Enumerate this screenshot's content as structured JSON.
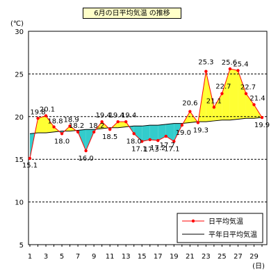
{
  "chart_data": {
    "type": "line",
    "title": "6月の日平均気温 の推移",
    "y_unit_label": "(℃)",
    "x_unit_label": "(日)",
    "ylim": [
      5,
      30
    ],
    "y_ticks": [
      5,
      10,
      15,
      20,
      25,
      30
    ],
    "x_ticks": [
      1,
      3,
      5,
      7,
      9,
      11,
      13,
      15,
      17,
      19,
      21,
      23,
      25,
      27,
      29
    ],
    "grid": true,
    "legend_position": "bottom-right",
    "x": [
      1,
      2,
      3,
      4,
      5,
      6,
      7,
      8,
      9,
      10,
      11,
      12,
      13,
      14,
      15,
      16,
      17,
      18,
      19,
      20,
      21,
      22,
      23,
      24,
      25,
      26,
      27,
      28,
      29,
      30
    ],
    "series": [
      {
        "name": "日平均気温",
        "color": "#ff0000",
        "values": [
          15.1,
          19.8,
          20.1,
          18.8,
          18.0,
          18.9,
          18.2,
          16.0,
          18.2,
          19.4,
          18.5,
          19.4,
          19.4,
          18.0,
          17.1,
          17.3,
          17.2,
          17.7,
          17.1,
          19.0,
          20.6,
          19.3,
          25.3,
          21.1,
          22.7,
          25.6,
          25.4,
          22.7,
          21.4,
          19.9
        ],
        "labels": [
          "15.1",
          "19.8",
          "20.1",
          "18.8",
          "18.0",
          "18.9",
          "18.2",
          "16.0",
          "18.2",
          "19.4",
          "18.5",
          "19.4",
          "19.4",
          "18.0",
          "17.1",
          "17.3",
          "17.2",
          "17.7",
          "17.1",
          "19.0",
          "20.6",
          "19.3",
          "25.3",
          "21.1",
          "22.7",
          "25.6",
          "25.4",
          "22.7",
          "21.4",
          "19.9"
        ]
      },
      {
        "name": "平年日平均気温",
        "color": "#000000",
        "values": [
          18.0,
          18.1,
          18.1,
          18.2,
          18.3,
          18.3,
          18.4,
          18.5,
          18.5,
          18.6,
          18.7,
          18.7,
          18.8,
          18.9,
          18.9,
          19.0,
          19.0,
          19.1,
          19.2,
          19.2,
          19.3,
          19.4,
          19.4,
          19.5,
          19.6,
          19.6,
          19.7,
          19.8,
          19.8,
          19.9
        ]
      }
    ],
    "fill_above_color": "#ffff33",
    "fill_below_color": "#33cccc"
  }
}
